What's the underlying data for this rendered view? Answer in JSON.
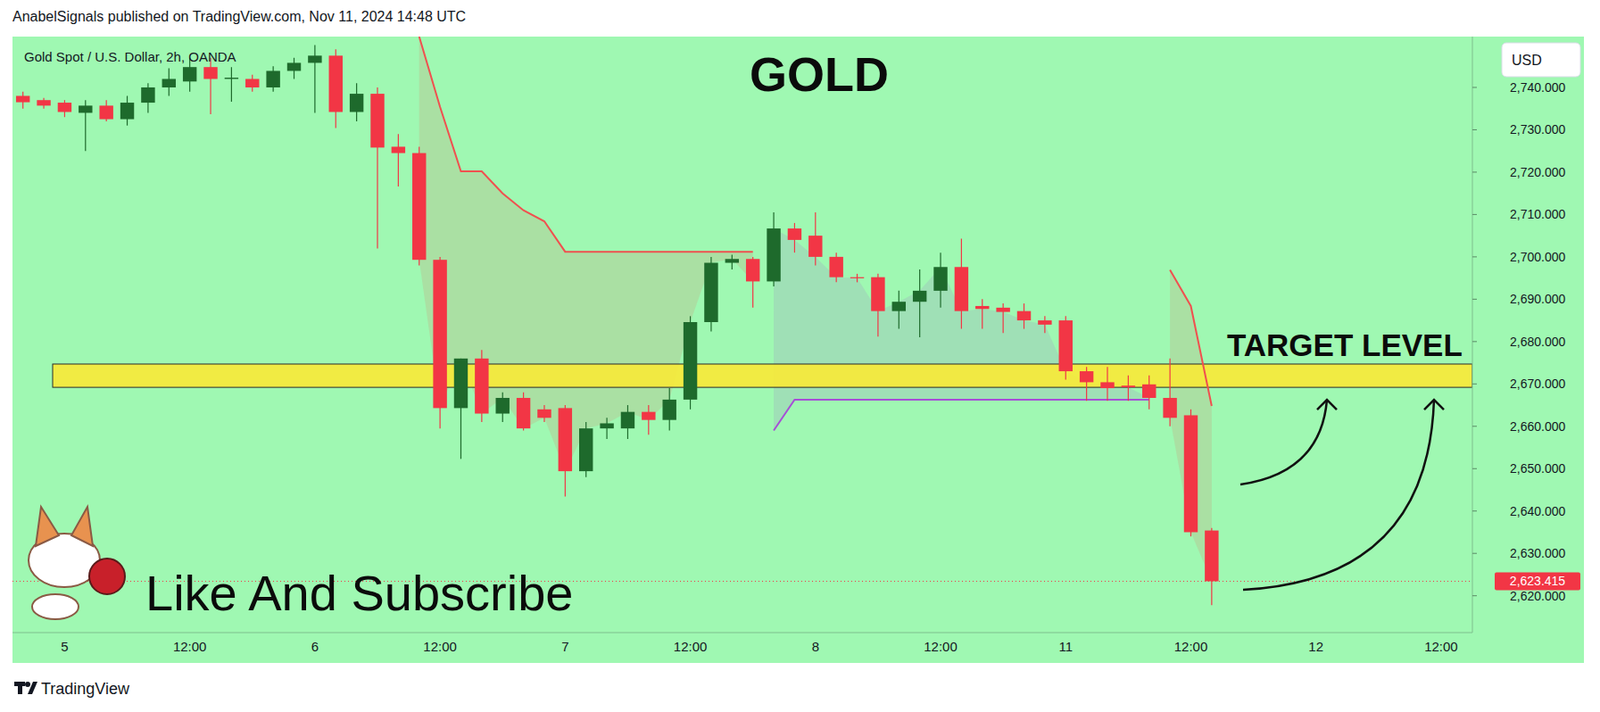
{
  "chart_data": {
    "type": "candlestick",
    "title": "GOLD",
    "subtitle": "Gold Spot / U.S. Dollar, 2h, OANDA",
    "publisher_note": "AnabelSignals published on TradingView.com, Nov 11, 2024 14:48 UTC",
    "axis_unit": "USD",
    "call_to_action": "Like And Subscribe",
    "watermark": "TradingView",
    "grid": false,
    "categories": [
      null,
      null,
      "5",
      null,
      null,
      null,
      null,
      null,
      "12:00",
      null,
      null,
      null,
      null,
      null,
      "6",
      null,
      null,
      null,
      null,
      null,
      "12:00",
      null,
      null,
      null,
      null,
      null,
      "7",
      null,
      null,
      null,
      null,
      null,
      "12:00",
      null,
      null,
      null,
      null,
      null,
      "8",
      null,
      null,
      null,
      null,
      null,
      "12:00",
      null,
      null,
      null,
      null,
      null,
      "11",
      null,
      null,
      null,
      null,
      null,
      "12:00",
      null,
      null,
      null,
      null,
      null,
      "12",
      null,
      null,
      null,
      null,
      null,
      "12:00",
      null
    ],
    "ylim": [
      2611.3,
      2752
    ],
    "yticks": [
      {
        "value": 2620,
        "label": "2,620.000"
      },
      {
        "value": 2630,
        "label": "2,630.000"
      },
      {
        "value": 2640,
        "label": "2,640.000"
      },
      {
        "value": 2650,
        "label": "2,650.000"
      },
      {
        "value": 2660,
        "label": "2,660.000"
      },
      {
        "value": 2670,
        "label": "2,670.000"
      },
      {
        "value": 2680,
        "label": "2,680.000"
      },
      {
        "value": 2690,
        "label": "2,690.000"
      },
      {
        "value": 2700,
        "label": "2,700.000"
      },
      {
        "value": 2710,
        "label": "2,710.000"
      },
      {
        "value": 2720,
        "label": "2,720.000"
      },
      {
        "value": 2730,
        "label": "2,730.000"
      },
      {
        "value": 2740,
        "label": "2,740.000"
      }
    ],
    "series": [
      {
        "type": "candlestick",
        "open": [
          2738,
          2737,
          2736.4,
          2734,
          2735.7,
          2732.5,
          2736.4,
          2740,
          2741.4,
          2744.8,
          2742,
          2742,
          2740,
          2743.9,
          2745.8,
          2747.5,
          2734.2,
          2738.5,
          2726,
          2724.5,
          2699.3,
          2664.3,
          2676,
          2663,
          2666.7,
          2664,
          2664.3,
          2649.4,
          2659.5,
          2659.5,
          2663.4,
          2661.5,
          2666.3,
          2684.6,
          2698.6,
          2699.5,
          2694.2,
          2706.7,
          2705,
          2700,
          2695.2,
          2695.2,
          2687.2,
          2689.4,
          2692,
          2697.6,
          2688.4,
          2688,
          2687.2,
          2685,
          2685,
          2673,
          2670.4,
          2669.6,
          2669.9,
          2666.7,
          2662.6,
          2635.4,
          null,
          null,
          null,
          null,
          null,
          null,
          null,
          null,
          null,
          null,
          null,
          null
        ],
        "high": [
          2739,
          2737.5,
          2737,
          2737,
          2737,
          2738,
          2741,
          2744.5,
          2747,
          2747,
          2744.8,
          2743,
          2745,
          2747,
          2750,
          2749,
          2741,
          2740,
          2729,
          2726,
          2700,
          2676,
          2678,
          2668,
          2668,
          2665,
          2665,
          2661,
          2662,
          2665,
          2665,
          2669,
          2686,
          2700,
          2700.5,
          2700,
          2710.5,
          2708,
          2710.5,
          2701,
          2696,
          2696,
          2692,
          2697,
          2701,
          2704.3,
          2690,
          2689,
          2689,
          2686,
          2686,
          2674,
          2674,
          2672,
          2672,
          2676,
          2664,
          2636,
          null,
          null,
          null,
          null,
          null,
          null,
          null,
          null,
          null,
          null,
          null,
          null
        ],
        "low": [
          2735,
          2735,
          2733,
          2725,
          2732,
          2731,
          2734,
          2738,
          2739,
          2733.7,
          2736.6,
          2739,
          2739,
          2742,
          2734,
          2730.4,
          2732,
          2702,
          2716.6,
          2698,
          2659.5,
          2652.3,
          2661,
          2661,
          2659,
          2661,
          2643.4,
          2648,
          2657,
          2657,
          2658,
          2659,
          2664,
          2682.4,
          2697,
          2688,
          2693,
          2701,
          2698,
          2694,
          2694,
          2681.2,
          2683,
          2681,
          2688,
          2683,
          2683,
          2682,
          2683,
          2682,
          2671,
          2666,
          2666,
          2666,
          2664,
          2660,
          2634,
          2617.8,
          null,
          null,
          null,
          null,
          null,
          null,
          null,
          null,
          null,
          null,
          null,
          null
        ],
        "close": [
          2736.5,
          2735.7,
          2734.2,
          2735.7,
          2732.5,
          2736.4,
          2740,
          2742,
          2744.8,
          2742,
          2742.3,
          2740,
          2743.9,
          2745.8,
          2747.5,
          2734.2,
          2738.5,
          2725.8,
          2724.5,
          2699.3,
          2664.3,
          2676,
          2663,
          2666.7,
          2659.5,
          2662,
          2649.4,
          2659.5,
          2660.7,
          2663.4,
          2661.5,
          2666.3,
          2684.6,
          2698.6,
          2699.5,
          2694.2,
          2706.7,
          2704,
          2700,
          2695.2,
          2695,
          2687.2,
          2689.4,
          2692,
          2697.6,
          2687.2,
          2687.7,
          2687,
          2685,
          2684,
          2673,
          2670.4,
          2669,
          2669.2,
          2666.7,
          2662,
          2635,
          2623.415,
          null,
          null,
          null,
          null,
          null,
          null,
          null,
          null,
          null,
          null,
          null,
          null
        ]
      },
      {
        "type": "line",
        "color": "#f0504f",
        "values": [
          null,
          null,
          null,
          null,
          null,
          null,
          null,
          null,
          null,
          null,
          null,
          null,
          null,
          null,
          null,
          null,
          null,
          null,
          null,
          2752,
          2735.4,
          2720.2,
          2720.2,
          2715,
          2711,
          2708.4,
          2701.2,
          2701.2,
          2701.2,
          2701.2,
          2701.2,
          2701.2,
          2701.2,
          2701.2,
          2701.2,
          2701.2,
          null,
          null,
          null,
          null,
          null,
          null,
          null,
          null,
          null,
          null,
          null,
          null,
          null,
          null,
          null,
          null,
          null,
          null,
          null,
          2696.9,
          2688.4,
          2664.8,
          null,
          null,
          null,
          null,
          null,
          null,
          null,
          null,
          null,
          null,
          null,
          null
        ]
      },
      {
        "type": "line",
        "color": "#a64fd6",
        "values": [
          null,
          null,
          null,
          null,
          null,
          null,
          null,
          null,
          null,
          null,
          null,
          null,
          null,
          null,
          null,
          null,
          null,
          null,
          null,
          null,
          null,
          null,
          null,
          null,
          null,
          null,
          null,
          null,
          null,
          null,
          null,
          null,
          null,
          null,
          null,
          null,
          2659,
          2666.3,
          2666.3,
          2666.3,
          2666.3,
          2666.3,
          2666.3,
          2666.3,
          2666.3,
          2666.3,
          2666.3,
          2666.3,
          2666.3,
          2666.3,
          2666.3,
          2666.3,
          2666.3,
          2666.3,
          2666.3,
          null,
          null,
          null,
          null,
          null,
          null,
          null,
          null,
          null,
          null,
          null,
          null,
          null,
          null,
          null
        ]
      }
    ],
    "target_zone": {
      "low": 2669.2,
      "high": 2674.7,
      "label": "TARGET LEVEL",
      "color": "#f7e93a"
    },
    "last_price": {
      "value": 2623.415,
      "label": "2,623.415",
      "color": "#f23645"
    }
  }
}
